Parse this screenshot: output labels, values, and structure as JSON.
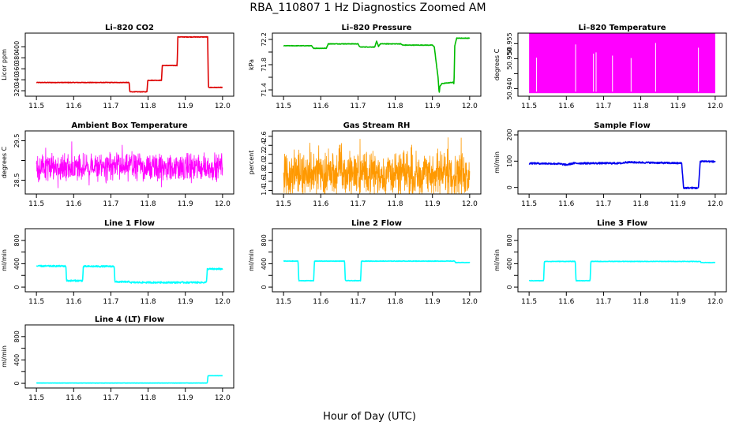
{
  "figure": {
    "title": "RBA_110807  1 Hz Diagnostics Zoomed AM",
    "xlabel": "Hour of Day (UTC)"
  },
  "chart_data": [
    {
      "type": "line",
      "title": "Li–820 CO2",
      "ylabel": "Licor ppm",
      "color": "#dd0000",
      "xlim": [
        11.47,
        12.03
      ],
      "ylim": [
        310,
        425
      ],
      "xticks": [
        11.5,
        11.6,
        11.7,
        11.8,
        11.9,
        12.0
      ],
      "xtick_labels": [
        "11.5",
        "11.6",
        "11.7",
        "11.8",
        "11.9",
        "12.0"
      ],
      "yticks": [
        320,
        340,
        360,
        380,
        400
      ],
      "ytick_labels": [
        "320",
        "340",
        "360",
        "380",
        "400"
      ],
      "style": "line",
      "noise": 0.9,
      "x": [
        11.5,
        11.749,
        11.751,
        11.797,
        11.799,
        11.836,
        11.838,
        11.878,
        11.88,
        11.96,
        11.962,
        12.0
      ],
      "y": [
        335,
        335,
        318,
        318,
        339,
        339,
        366,
        366,
        418,
        418,
        326,
        326
      ]
    },
    {
      "type": "line",
      "title": "Li–820 Pressure",
      "ylabel": "kPa",
      "color": "#00bb00",
      "xlim": [
        11.47,
        12.03
      ],
      "ylim": [
        71.3,
        72.3
      ],
      "xticks": [
        11.5,
        11.6,
        11.7,
        11.8,
        11.9,
        12.0
      ],
      "xtick_labels": [
        "11.5",
        "11.6",
        "11.7",
        "11.8",
        "11.9",
        "12.0"
      ],
      "yticks": [
        71.4,
        71.6,
        71.8,
        72.0,
        72.2
      ],
      "ytick_labels": [
        "71.4",
        "",
        "71.8",
        "",
        "72.2"
      ],
      "style": "line",
      "noise": 0.008,
      "x": [
        11.5,
        11.575,
        11.58,
        11.615,
        11.62,
        11.7,
        11.705,
        11.745,
        11.75,
        11.755,
        11.76,
        11.815,
        11.82,
        11.9,
        11.905,
        11.915,
        11.918,
        11.92,
        11.925,
        11.955,
        11.958,
        11.96,
        11.965,
        12.0
      ],
      "y": [
        72.1,
        72.1,
        72.06,
        72.06,
        72.13,
        72.13,
        72.08,
        72.08,
        72.17,
        72.09,
        72.13,
        72.13,
        72.11,
        72.11,
        72.08,
        71.6,
        71.35,
        71.45,
        71.5,
        71.52,
        71.5,
        72.1,
        72.22,
        72.22
      ]
    },
    {
      "type": "line",
      "title": "Li–820 Temperature",
      "ylabel": "degrees C",
      "color": "#ff00ff",
      "xlim": [
        11.47,
        12.03
      ],
      "ylim": [
        50.9375,
        50.9585
      ],
      "xticks": [
        11.5,
        11.6,
        11.7,
        11.8,
        11.9,
        12.0
      ],
      "xtick_labels": [
        "11.5",
        "11.6",
        "11.7",
        "11.8",
        "11.9",
        "12.0"
      ],
      "yticks": [
        50.94,
        50.945,
        50.95,
        50.955
      ],
      "ytick_labels": [
        "50.940",
        "",
        "50.950",
        "50.955"
      ],
      "style": "band",
      "x": [
        11.5,
        12.0
      ],
      "y": [
        50.9385,
        50.9585
      ]
    },
    {
      "type": "line",
      "title": "Ambient Box Temperature",
      "ylabel": "degrees C",
      "color": "#ff00ff",
      "xlim": [
        11.47,
        12.03
      ],
      "ylim": [
        28.15,
        29.75
      ],
      "xticks": [
        11.5,
        11.6,
        11.7,
        11.8,
        11.9,
        12.0
      ],
      "xtick_labels": [
        "11.5",
        "11.6",
        "11.7",
        "11.8",
        "11.9",
        "12.0"
      ],
      "yticks": [
        28.5,
        29.0,
        29.5
      ],
      "ytick_labels": [
        "28.5",
        "",
        "29.5"
      ],
      "style": "noise",
      "noise": 0.45,
      "x": [
        11.5,
        12.0
      ],
      "y": [
        28.83,
        28.83
      ]
    },
    {
      "type": "line",
      "title": "Gas Stream RH",
      "ylabel": "percent",
      "color": "#ff9900",
      "xlim": [
        11.47,
        12.03
      ],
      "ylim": [
        1.32,
        2.72
      ],
      "xticks": [
        11.5,
        11.6,
        11.7,
        11.8,
        11.9,
        12.0
      ],
      "xtick_labels": [
        "11.5",
        "11.6",
        "11.7",
        "11.8",
        "11.9",
        "12.0"
      ],
      "yticks": [
        1.4,
        1.6,
        1.8,
        2.0,
        2.2,
        2.4,
        2.6
      ],
      "ytick_labels": [
        "1.4",
        "1.6",
        "1.8",
        "2.0",
        "2.2",
        "2.4",
        "2.6"
      ],
      "style": "noise",
      "noise": 0.62,
      "x": [
        11.5,
        12.0
      ],
      "y": [
        1.78,
        1.78
      ]
    },
    {
      "type": "line",
      "title": "Sample Flow",
      "ylabel": "ml/min",
      "color": "#0000ee",
      "xlim": [
        11.47,
        12.03
      ],
      "ylim": [
        -25,
        215
      ],
      "xticks": [
        11.5,
        11.6,
        11.7,
        11.8,
        11.9,
        12.0
      ],
      "xtick_labels": [
        "11.5",
        "11.6",
        "11.7",
        "11.8",
        "11.9",
        "12.0"
      ],
      "yticks": [
        0,
        100,
        200
      ],
      "ytick_labels": [
        "0",
        "100",
        "200"
      ],
      "style": "line",
      "noise": 6,
      "x": [
        11.5,
        11.58,
        11.6,
        11.62,
        11.75,
        11.76,
        11.91,
        11.915,
        11.955,
        11.96,
        12.0
      ],
      "y": [
        92,
        90,
        86,
        92,
        92,
        96,
        92,
        -2,
        -2,
        100,
        98
      ]
    },
    {
      "type": "line",
      "title": "Line 1 Flow",
      "ylabel": "ml/min",
      "color": "#00ffff",
      "xlim": [
        11.47,
        12.03
      ],
      "ylim": [
        -80,
        1000
      ],
      "xticks": [
        11.5,
        11.6,
        11.7,
        11.8,
        11.9,
        12.0
      ],
      "xtick_labels": [
        "11.5",
        "11.6",
        "11.7",
        "11.8",
        "11.9",
        "12.0"
      ],
      "yticks": [
        0,
        200,
        400,
        600,
        800
      ],
      "ytick_labels": [
        "0",
        "",
        "400",
        "",
        "800"
      ],
      "style": "line",
      "noise": 25,
      "x": [
        11.5,
        11.579,
        11.581,
        11.624,
        11.626,
        11.709,
        11.711,
        11.751,
        11.753,
        11.957,
        11.959,
        12.0
      ],
      "y": [
        360,
        360,
        110,
        110,
        355,
        355,
        90,
        90,
        80,
        80,
        310,
        310
      ]
    },
    {
      "type": "line",
      "title": "Line 2 Flow",
      "ylabel": "ml/min",
      "color": "#00ffff",
      "xlim": [
        11.47,
        12.03
      ],
      "ylim": [
        -80,
        1000
      ],
      "xticks": [
        11.5,
        11.6,
        11.7,
        11.8,
        11.9,
        12.0
      ],
      "xtick_labels": [
        "11.5",
        "11.6",
        "11.7",
        "11.8",
        "11.9",
        "12.0"
      ],
      "yticks": [
        0,
        200,
        400,
        600,
        800
      ],
      "ytick_labels": [
        "0",
        "",
        "400",
        "",
        "800"
      ],
      "style": "line",
      "noise": 8,
      "x": [
        11.5,
        11.539,
        11.541,
        11.581,
        11.583,
        11.664,
        11.666,
        11.707,
        11.709,
        11.96,
        11.962,
        12.0
      ],
      "y": [
        445,
        445,
        110,
        110,
        445,
        445,
        110,
        110,
        445,
        445,
        420,
        420
      ]
    },
    {
      "type": "line",
      "title": "Line 3 Flow",
      "ylabel": "ml/min",
      "color": "#00ffff",
      "xlim": [
        11.47,
        12.03
      ],
      "ylim": [
        -80,
        1000
      ],
      "xticks": [
        11.5,
        11.6,
        11.7,
        11.8,
        11.9,
        12.0
      ],
      "xtick_labels": [
        "11.5",
        "11.6",
        "11.7",
        "11.8",
        "11.9",
        "12.0"
      ],
      "yticks": [
        0,
        200,
        400,
        600,
        800
      ],
      "ytick_labels": [
        "0",
        "",
        "400",
        "",
        "800"
      ],
      "style": "line",
      "noise": 8,
      "x": [
        11.5,
        11.539,
        11.541,
        11.624,
        11.626,
        11.664,
        11.666,
        11.96,
        11.962,
        12.0
      ],
      "y": [
        110,
        110,
        440,
        440,
        110,
        110,
        440,
        440,
        420,
        420
      ]
    },
    {
      "type": "line",
      "title": "Line 4 (LT) Flow",
      "ylabel": "ml/min",
      "color": "#00ffff",
      "xlim": [
        11.47,
        12.03
      ],
      "ylim": [
        -80,
        1000
      ],
      "xticks": [
        11.5,
        11.6,
        11.7,
        11.8,
        11.9,
        12.0
      ],
      "xtick_labels": [
        "11.5",
        "11.6",
        "11.7",
        "11.8",
        "11.9",
        "12.0"
      ],
      "yticks": [
        0,
        200,
        400,
        600,
        800
      ],
      "ytick_labels": [
        "0",
        "",
        "400",
        "",
        "800"
      ],
      "style": "line",
      "noise": 4,
      "x": [
        11.5,
        11.959,
        11.961,
        12.0
      ],
      "y": [
        5,
        5,
        130,
        130
      ]
    }
  ]
}
